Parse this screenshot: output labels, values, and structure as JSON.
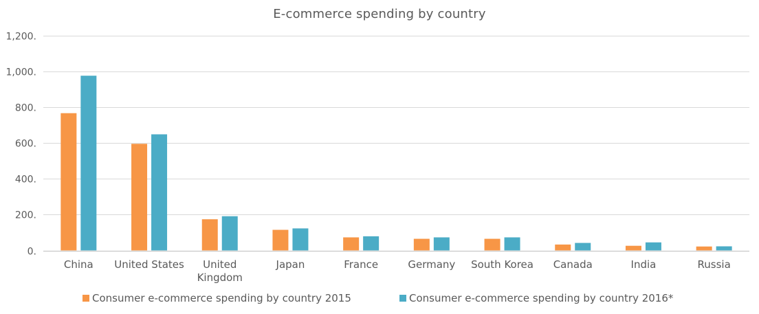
{
  "chart_data": {
    "type": "bar",
    "title": "E-commerce  spending by country",
    "xlabel": "",
    "ylabel": "",
    "ylim": [
      0,
      1200
    ],
    "y_ticks": [
      0,
      200,
      400,
      600,
      800,
      1000,
      1200
    ],
    "y_tick_labels": [
      "0.",
      "200.",
      "400.",
      "600.",
      "800.",
      "1,000.",
      "1,200."
    ],
    "grid": true,
    "legend_position": "bottom",
    "categories": [
      "China",
      "United States",
      "United Kingdom",
      "Japan",
      "France",
      "Germany",
      "South Korea",
      "Canada",
      "India",
      "Russia"
    ],
    "category_label_lines": [
      [
        "China"
      ],
      [
        "United States"
      ],
      [
        "United",
        "Kingdom"
      ],
      [
        "Japan"
      ],
      [
        "France"
      ],
      [
        "Germany"
      ],
      [
        "South Korea"
      ],
      [
        "Canada"
      ],
      [
        "India"
      ],
      [
        "Russia"
      ]
    ],
    "series": [
      {
        "name": "Consumer e-commerce spending by country 2015",
        "color": "#F79646",
        "values": [
          766,
          595,
          174,
          115,
          73,
          65,
          65,
          33,
          26,
          22
        ]
      },
      {
        "name": "Consumer e-commerce spending by country 2016*",
        "color": "#4BACC6",
        "values": [
          975,
          648,
          191,
          123,
          79,
          73,
          73,
          42,
          45,
          23
        ]
      }
    ]
  }
}
